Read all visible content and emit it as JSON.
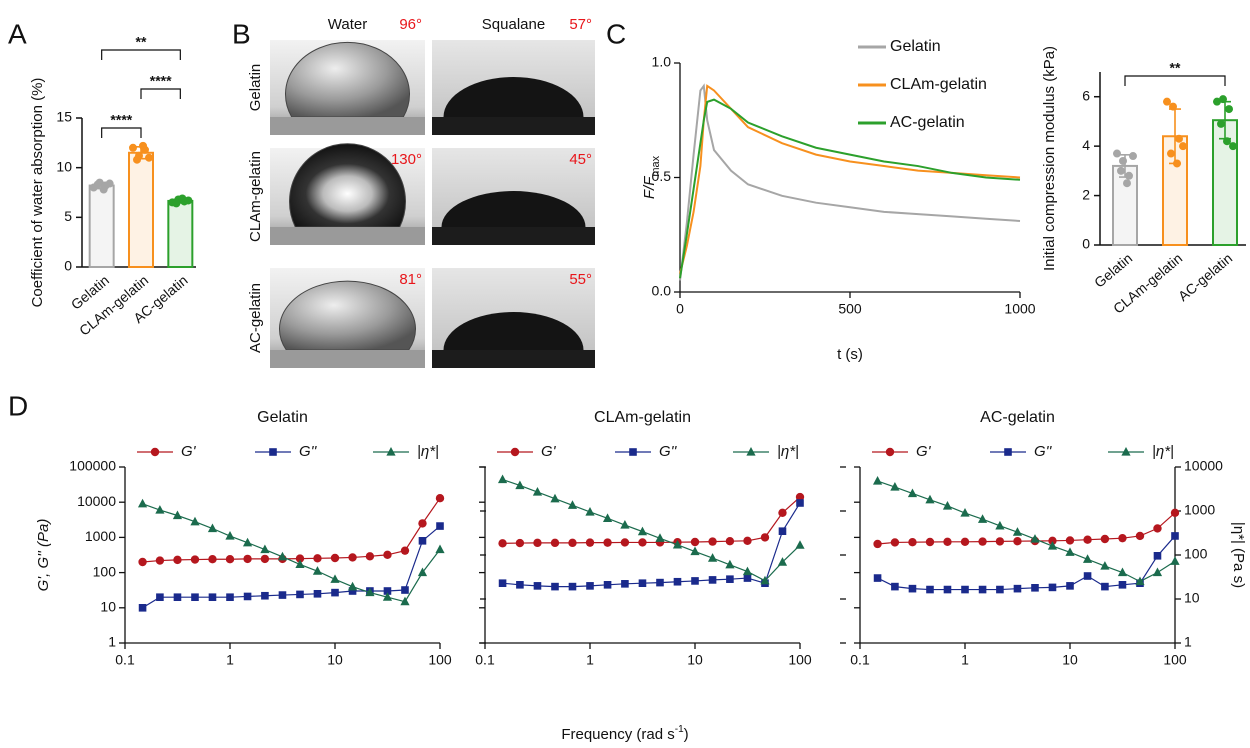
{
  "panel_labels": [
    "A",
    "B",
    "C",
    "D"
  ],
  "chart_data": [
    {
      "type": "bar",
      "ylabel": "Coefficient of water absorption (%)",
      "categories": [
        "Gelatin",
        "CLAm-gelatin",
        "AC-gelatin"
      ],
      "colors": [
        "#a6a6a6",
        "#f7901e",
        "#2ca02c"
      ],
      "values": [
        8.2,
        11.5,
        6.65
      ],
      "errors": [
        0.3,
        0.6,
        0.2
      ],
      "points": [
        [
          8.0,
          8.5,
          8.2,
          8.3,
          7.8,
          8.4
        ],
        [
          12.0,
          11.2,
          11.8,
          10.8,
          12.2,
          11.0
        ],
        [
          6.5,
          6.8,
          6.6,
          6.4,
          6.9,
          6.7
        ]
      ],
      "ylim": [
        0,
        15
      ],
      "yticks": [
        0,
        5,
        10,
        15
      ],
      "comparisons": [
        {
          "groups": [
            "Gelatin",
            "CLAm-gelatin"
          ],
          "label": "****"
        },
        {
          "groups": [
            "CLAm-gelatin",
            "AC-gelatin"
          ],
          "label": "****"
        },
        {
          "groups": [
            "Gelatin",
            "AC-gelatin"
          ],
          "label": "**"
        }
      ]
    },
    {
      "type": "image-grid",
      "columns": [
        "Water",
        "Squalane"
      ],
      "rows": [
        "Gelatin",
        "CLAm-gelatin",
        "AC-gelatin"
      ],
      "angles": [
        [
          "96°",
          "57°"
        ],
        [
          "130°",
          "45°"
        ],
        [
          "81°",
          "55°"
        ]
      ],
      "angle_color": "#e8161b"
    },
    {
      "type": "line",
      "ylabel": "F/F",
      "ylabel_subscript": "max",
      "xlabel": "t (s)",
      "x": [
        0,
        20,
        40,
        60,
        70,
        80,
        100,
        150,
        200,
        300,
        400,
        500,
        600,
        700,
        800,
        900,
        1000
      ],
      "series": [
        {
          "name": "Gelatin",
          "color": "#a6a6a6",
          "values": [
            0.05,
            0.3,
            0.6,
            0.88,
            0.9,
            0.75,
            0.62,
            0.53,
            0.47,
            0.42,
            0.39,
            0.37,
            0.35,
            0.34,
            0.33,
            0.32,
            0.31
          ]
        },
        {
          "name": "CLAm-gelatin",
          "color": "#f7901e",
          "values": [
            0.08,
            0.2,
            0.35,
            0.55,
            0.75,
            0.9,
            0.88,
            0.8,
            0.72,
            0.65,
            0.6,
            0.57,
            0.55,
            0.53,
            0.52,
            0.51,
            0.5
          ]
        },
        {
          "name": "AC-gelatin",
          "color": "#2ca02c",
          "values": [
            0.06,
            0.25,
            0.45,
            0.65,
            0.75,
            0.83,
            0.84,
            0.8,
            0.74,
            0.68,
            0.63,
            0.6,
            0.57,
            0.55,
            0.52,
            0.5,
            0.49
          ]
        }
      ],
      "xlim": [
        0,
        1000
      ],
      "xticks": [
        0,
        500,
        1000
      ],
      "ylim": [
        0,
        1
      ],
      "yticks": [
        {
          "value": 0,
          "label": "0.0"
        },
        {
          "value": 0.5,
          "label": "0.5"
        },
        {
          "value": 1,
          "label": "1.0"
        }
      ],
      "legend": "right"
    },
    {
      "type": "bar",
      "ylabel": "Initial compression modulus (kPa)",
      "categories": [
        "Gelatin",
        "CLAm-gelatin",
        "AC-gelatin"
      ],
      "colors": [
        "#a6a6a6",
        "#f7901e",
        "#2ca02c"
      ],
      "values": [
        3.2,
        4.4,
        5.05
      ],
      "errors": [
        0.45,
        1.1,
        0.75
      ],
      "points": [
        [
          3.7,
          3.4,
          2.8,
          3.0,
          2.5,
          3.6
        ],
        [
          5.8,
          5.6,
          4.3,
          3.7,
          3.3,
          4.0
        ],
        [
          5.8,
          5.9,
          5.5,
          4.9,
          4.2,
          4.0
        ]
      ],
      "ylim": [
        0,
        7
      ],
      "yticks": [
        0,
        2,
        4,
        6
      ],
      "comparisons": [
        {
          "groups": [
            "Gelatin",
            "AC-gelatin"
          ],
          "label": "**"
        }
      ]
    },
    {
      "type": "line",
      "title": "Gelatin",
      "log_scale": true,
      "ylabel": "G', G'' (Pa)",
      "x": [
        0.147,
        0.215,
        0.316,
        0.464,
        0.681,
        1,
        1.47,
        2.15,
        3.16,
        4.64,
        6.81,
        10,
        14.7,
        21.5,
        31.6,
        46.4,
        68.1,
        100
      ],
      "series": [
        {
          "name": "G'",
          "color": "#b5171e",
          "marker": "circle",
          "values": [
            200,
            220,
            230,
            235,
            240,
            240,
            245,
            245,
            245,
            250,
            255,
            260,
            270,
            290,
            320,
            420,
            2500,
            13000
          ]
        },
        {
          "name": "G''",
          "color": "#1a2a8c",
          "marker": "square",
          "values": [
            10,
            20,
            20,
            20,
            20,
            20,
            21,
            22,
            23,
            24,
            25,
            27,
            30,
            30,
            30,
            32,
            800,
            2100
          ]
        },
        {
          "name": "|η*|",
          "color": "#1b6b4d",
          "marker": "triangle",
          "axis": "y2",
          "values": [
            1460,
            1050,
            790,
            570,
            400,
            270,
            190,
            133,
            91,
            61,
            43,
            28,
            19,
            14,
            11,
            8.7,
            40,
            133
          ]
        }
      ],
      "xlim": [
        0.1,
        100
      ],
      "xticks": [
        0.1,
        1,
        10,
        100
      ],
      "ylim": [
        1,
        100000
      ],
      "yticks": [
        1,
        10,
        100,
        1000,
        10000,
        100000
      ],
      "ytick_labels": true,
      "y2lim": [
        1,
        10000
      ],
      "y2ticks": [
        1,
        10,
        100,
        1000,
        10000
      ],
      "y2tick_labels": false,
      "legend": "top"
    },
    {
      "type": "line",
      "title": "CLAm-gelatin",
      "log_scale": true,
      "xlabel": "Frequency (rad s",
      "xlabel_superscript": "-1",
      "xlabel_end": ")",
      "x": [
        0.147,
        0.215,
        0.316,
        0.464,
        0.681,
        1,
        1.47,
        2.15,
        3.16,
        4.64,
        6.81,
        10,
        14.7,
        21.5,
        31.6,
        46.4,
        68.1,
        100
      ],
      "series": [
        {
          "name": "G'",
          "color": "#b5171e",
          "marker": "circle",
          "values": [
            680,
            690,
            700,
            700,
            700,
            710,
            710,
            720,
            720,
            720,
            730,
            740,
            760,
            780,
            800,
            1000,
            5000,
            14000
          ]
        },
        {
          "name": "G''",
          "color": "#1a2a8c",
          "marker": "square",
          "values": [
            50,
            45,
            42,
            40,
            40,
            42,
            45,
            48,
            50,
            52,
            55,
            58,
            62,
            65,
            70,
            50,
            1500,
            9500
          ]
        },
        {
          "name": "|η*|",
          "color": "#1b6b4d",
          "marker": "triangle",
          "axis": "y2",
          "values": [
            5200,
            3800,
            2700,
            1900,
            1350,
            950,
            680,
            480,
            340,
            240,
            170,
            120,
            85,
            60,
            42,
            26,
            69,
            167
          ]
        }
      ],
      "xlim": [
        0.1,
        100
      ],
      "xticks": [
        0.1,
        1,
        10,
        100
      ],
      "ylim": [
        1,
        100000
      ],
      "yticks": [
        1,
        10,
        100,
        1000,
        10000,
        100000
      ],
      "ytick_labels": false,
      "y2lim": [
        1,
        10000
      ],
      "y2ticks": [
        1,
        10,
        100,
        1000,
        10000
      ],
      "y2tick_labels": false,
      "legend": "top"
    },
    {
      "type": "line",
      "title": "AC-gelatin",
      "log_scale": true,
      "y2label": "|η*| (Pa s)",
      "x": [
        0.147,
        0.215,
        0.316,
        0.464,
        0.681,
        1,
        1.47,
        2.15,
        3.16,
        4.64,
        6.81,
        10,
        14.7,
        21.5,
        31.6,
        46.4,
        68.1,
        100
      ],
      "series": [
        {
          "name": "G'",
          "color": "#b5171e",
          "marker": "circle",
          "values": [
            650,
            720,
            730,
            740,
            750,
            750,
            760,
            770,
            780,
            790,
            800,
            820,
            860,
            900,
            950,
            1100,
            1800,
            5000
          ]
        },
        {
          "name": "G''",
          "color": "#1a2a8c",
          "marker": "square",
          "values": [
            70,
            40,
            35,
            33,
            33,
            33,
            33,
            33,
            35,
            37,
            38,
            42,
            80,
            40,
            45,
            50,
            300,
            1100
          ]
        },
        {
          "name": "|η*|",
          "color": "#1b6b4d",
          "marker": "triangle",
          "axis": "y2",
          "values": [
            4800,
            3500,
            2500,
            1800,
            1300,
            900,
            650,
            460,
            330,
            230,
            160,
            115,
            80,
            56,
            40,
            25,
            40,
            72
          ]
        }
      ],
      "xlim": [
        0.1,
        100
      ],
      "xticks": [
        0.1,
        1,
        10,
        100
      ],
      "ylim": [
        1,
        100000
      ],
      "yticks": [
        1,
        10,
        100,
        1000,
        10000,
        100000
      ],
      "ytick_labels": false,
      "y2lim": [
        1,
        10000
      ],
      "y2ticks": [
        1,
        10,
        100,
        1000,
        10000
      ],
      "y2tick_labels": true,
      "legend": "top"
    }
  ]
}
